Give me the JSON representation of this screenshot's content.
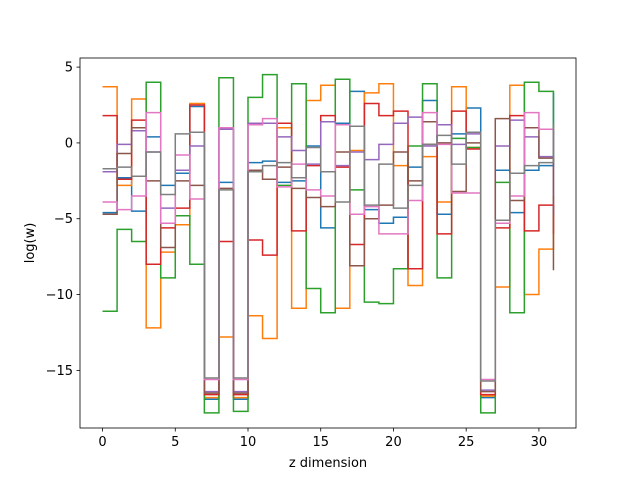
{
  "chart_data": {
    "type": "line",
    "drawstyle": "steps-post",
    "xlabel": "z dimension",
    "ylabel": "log(w)",
    "xlim": [
      -1.55,
      32.55
    ],
    "ylim": [
      -18.8,
      5.6
    ],
    "xticks": [
      0,
      5,
      10,
      15,
      20,
      25,
      30
    ],
    "yticks": [
      5,
      0,
      -5,
      -10,
      -15
    ],
    "ytick_labels": [
      "5",
      "0",
      "−5",
      "−10",
      "−15"
    ],
    "grid": false,
    "x": [
      0,
      1,
      2,
      3,
      4,
      5,
      6,
      7,
      8,
      9,
      10,
      11,
      12,
      13,
      14,
      15,
      16,
      17,
      18,
      19,
      20,
      21,
      22,
      23,
      24,
      25,
      26,
      27,
      28,
      29,
      30,
      31
    ],
    "series": [
      {
        "color": "#1f77b4",
        "values": [
          -4.6,
          -2.3,
          -4.5,
          0.4,
          -2.8,
          -2.0,
          2.4,
          -16.9,
          -2.6,
          -16.9,
          -1.3,
          -1.2,
          -2.6,
          -2.5,
          -0.2,
          -5.6,
          1.3,
          3.4,
          -4.4,
          -5.3,
          -4.9,
          -1.6,
          2.8,
          -4.7,
          0.6,
          2.3,
          -16.8,
          -1.8,
          -4.6,
          -1.8,
          -1.5,
          3.3
        ]
      },
      {
        "color": "#ff7f0e",
        "values": [
          3.7,
          -2.8,
          2.9,
          -12.2,
          -7.2,
          -5.4,
          2.6,
          -16.8,
          -12.8,
          -16.8,
          -11.4,
          -12.9,
          1.0,
          -10.9,
          2.8,
          3.8,
          -10.9,
          -0.5,
          3.3,
          3.9,
          -1.5,
          -9.4,
          -0.9,
          -3.9,
          3.7,
          -0.3,
          -16.7,
          -9.5,
          3.8,
          -10.0,
          -7.0,
          -3.5
        ]
      },
      {
        "color": "#2ca02c",
        "values": [
          -11.1,
          -5.7,
          -6.5,
          4.0,
          -8.9,
          -4.8,
          -8.0,
          -17.8,
          4.3,
          -17.7,
          3.0,
          4.5,
          -2.8,
          3.9,
          -9.6,
          -11.2,
          4.2,
          -3.1,
          -10.5,
          -10.6,
          -8.3,
          -0.2,
          3.9,
          -8.9,
          0.3,
          -0.3,
          -17.8,
          -2.6,
          -11.2,
          4.0,
          3.4,
          -1.3
        ]
      },
      {
        "color": "#d62728",
        "values": [
          1.8,
          -2.4,
          1.5,
          -8.0,
          -5.6,
          -4.3,
          2.5,
          -16.6,
          -6.5,
          -16.6,
          -6.4,
          -7.4,
          1.3,
          -5.8,
          -1.5,
          1.8,
          -1.6,
          -6.7,
          2.6,
          1.8,
          2.1,
          -8.3,
          -0.1,
          -6.0,
          2.1,
          -0.4,
          -16.6,
          -5.6,
          1.8,
          -5.8,
          -4.1,
          -6.0
        ]
      },
      {
        "color": "#9467bd",
        "values": [
          -1.9,
          -0.1,
          0.8,
          -0.6,
          -4.3,
          -1.8,
          -0.2,
          -16.4,
          0.9,
          -16.4,
          1.3,
          1.3,
          0.4,
          -0.5,
          -1.4,
          1.4,
          -1.5,
          -0.6,
          -1.1,
          -0.1,
          1.3,
          1.7,
          -0.2,
          1.2,
          -0.1,
          0.6,
          -16.3,
          -0.2,
          1.5,
          0.4,
          -0.9,
          -4.7
        ]
      },
      {
        "color": "#8c564b",
        "values": [
          -4.7,
          -0.7,
          1.0,
          -2.5,
          -6.9,
          -2.5,
          -2.8,
          -16.5,
          -3.0,
          -16.5,
          -1.8,
          -2.4,
          -1.6,
          -3.0,
          -3.6,
          -4.2,
          -0.6,
          -8.1,
          -5.0,
          -4.1,
          -0.6,
          -2.5,
          1.4,
          0.0,
          -3.2,
          0.0,
          -16.4,
          1.6,
          -3.8,
          1.0,
          -1.0,
          -8.4
        ]
      },
      {
        "color": "#e377c2",
        "values": [
          -3.9,
          -4.4,
          -3.5,
          2.0,
          -5.3,
          -0.8,
          -3.7,
          -15.6,
          1.0,
          -15.6,
          1.2,
          1.6,
          -2.9,
          -1.4,
          -3.1,
          -3.5,
          1.2,
          -4.7,
          -4.2,
          -6.0,
          -6.0,
          -3.8,
          2.0,
          -0.1,
          -3.3,
          -3.3,
          -15.6,
          -5.3,
          -3.5,
          2.0,
          0.9,
          -0.7
        ]
      },
      {
        "color": "#7f7f7f",
        "values": [
          -1.7,
          -1.6,
          -2.2,
          -0.6,
          -3.4,
          0.6,
          0.7,
          -15.5,
          -3.1,
          -15.5,
          -1.9,
          -1.5,
          -1.3,
          -2.3,
          -0.3,
          -1.9,
          -3.9,
          1.1,
          -4.1,
          -1.4,
          -4.3,
          -2.8,
          -0.1,
          0.5,
          -1.4,
          0.7,
          -15.7,
          -5.1,
          -2.0,
          -1.5,
          -1.3,
          1.3
        ]
      }
    ]
  }
}
